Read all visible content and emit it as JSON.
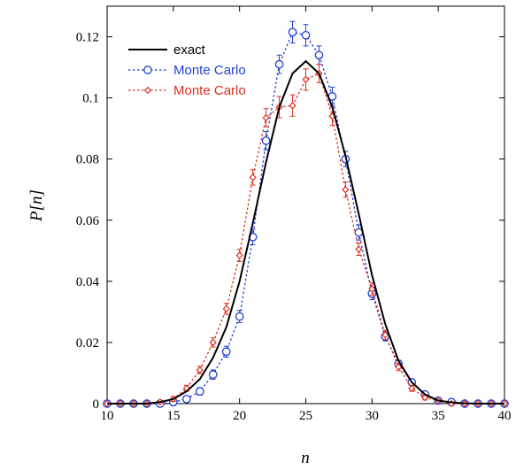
{
  "chart_data": {
    "type": "line",
    "title": "",
    "xlabel": "n",
    "ylabel": "P[n]",
    "xlim": [
      10,
      40
    ],
    "ylim": [
      0,
      0.13
    ],
    "x_ticks": [
      "10",
      "15",
      "20",
      "25",
      "30",
      "35",
      "40"
    ],
    "y_ticks": [
      "0",
      "0.02",
      "0.04",
      "0.06",
      "0.08",
      "0.1",
      "0.12"
    ],
    "grid": false,
    "legend_position": "top-left",
    "series": [
      {
        "name": "exact",
        "color": "#000000",
        "style": "solid",
        "marker": "none",
        "x": [
          10,
          11,
          12,
          13,
          14,
          15,
          16,
          17,
          18,
          19,
          20,
          21,
          22,
          23,
          24,
          25,
          26,
          27,
          28,
          29,
          30,
          31,
          32,
          33,
          34,
          35,
          36,
          37,
          38,
          39,
          40
        ],
        "y": [
          0.0,
          0.0,
          0.0,
          0.0,
          0.0005,
          0.0015,
          0.004,
          0.008,
          0.015,
          0.025,
          0.04,
          0.059,
          0.079,
          0.097,
          0.108,
          0.112,
          0.108,
          0.097,
          0.081,
          0.062,
          0.042,
          0.026,
          0.014,
          0.007,
          0.003,
          0.001,
          0.0004,
          0.0001,
          0.0,
          0.0,
          0.0
        ]
      },
      {
        "name": "Monte Carlo",
        "color": "#1f3fd6",
        "style": "dotted",
        "marker": "circle",
        "x": [
          10,
          11,
          12,
          13,
          14,
          15,
          16,
          17,
          18,
          19,
          20,
          21,
          22,
          23,
          24,
          25,
          26,
          27,
          28,
          29,
          30,
          31,
          32,
          33,
          34,
          35,
          36,
          37,
          38,
          39,
          40
        ],
        "y": [
          0.0,
          0.0,
          0.0,
          0.0,
          0.0,
          0.0005,
          0.0015,
          0.004,
          0.0095,
          0.017,
          0.0285,
          0.0545,
          0.086,
          0.111,
          0.1215,
          0.1205,
          0.114,
          0.1005,
          0.08,
          0.056,
          0.036,
          0.022,
          0.013,
          0.007,
          0.003,
          0.001,
          0.0005,
          0.0,
          0.0,
          0.0,
          0.0
        ],
        "err": [
          0,
          0,
          0,
          0,
          0,
          0.0008,
          0.001,
          0.0012,
          0.0015,
          0.0018,
          0.002,
          0.0025,
          0.003,
          0.003,
          0.0035,
          0.0035,
          0.003,
          0.003,
          0.0025,
          0.0025,
          0.002,
          0.0015,
          0.0012,
          0.001,
          0.0008,
          0,
          0,
          0,
          0,
          0,
          0
        ]
      },
      {
        "name": "Monte Carlo",
        "color": "#e0301e",
        "style": "dotted",
        "marker": "diamond",
        "x": [
          10,
          11,
          12,
          13,
          14,
          15,
          16,
          17,
          18,
          19,
          20,
          21,
          22,
          23,
          24,
          25,
          26,
          27,
          28,
          29,
          30,
          31,
          32,
          33,
          34,
          35,
          36,
          37,
          38,
          39,
          40
        ],
        "y": [
          0.0,
          0.0,
          0.0,
          0.0,
          0.0005,
          0.0015,
          0.005,
          0.011,
          0.02,
          0.031,
          0.0485,
          0.074,
          0.0935,
          0.097,
          0.0975,
          0.106,
          0.108,
          0.094,
          0.07,
          0.0505,
          0.0375,
          0.0225,
          0.012,
          0.005,
          0.002,
          0.001,
          0.0,
          0.0,
          0.0,
          0.0,
          0.0
        ],
        "err": [
          0,
          0,
          0,
          0,
          0,
          0.0008,
          0.001,
          0.0012,
          0.0015,
          0.0018,
          0.002,
          0.0025,
          0.003,
          0.0035,
          0.0035,
          0.0035,
          0.003,
          0.003,
          0.0025,
          0.002,
          0.002,
          0.0015,
          0.0012,
          0.001,
          0.0008,
          0,
          0,
          0,
          0,
          0,
          0
        ]
      }
    ]
  }
}
